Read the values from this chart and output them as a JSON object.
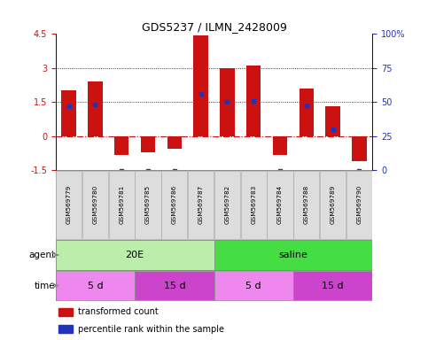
{
  "title": "GDS5237 / ILMN_2428009",
  "samples": [
    "GSM569779",
    "GSM569780",
    "GSM569781",
    "GSM569785",
    "GSM569786",
    "GSM569787",
    "GSM569782",
    "GSM569783",
    "GSM569784",
    "GSM569788",
    "GSM569789",
    "GSM569790"
  ],
  "bar_values": [
    2.0,
    2.4,
    -0.85,
    -0.7,
    -0.55,
    4.45,
    3.0,
    3.1,
    -0.85,
    2.1,
    1.3,
    -1.1
  ],
  "blue_values": [
    1.3,
    1.4,
    -1.55,
    -1.55,
    -1.55,
    1.85,
    1.5,
    1.55,
    -1.55,
    1.35,
    0.3,
    -1.55
  ],
  "ylim": [
    -1.5,
    4.5
  ],
  "right_ylim": [
    0,
    100
  ],
  "yticks_left": [
    -1.5,
    0,
    1.5,
    3,
    4.5
  ],
  "yticks_right": [
    0,
    25,
    50,
    75,
    100
  ],
  "bar_color": "#CC1111",
  "blue_color": "#2233BB",
  "agent_groups": [
    {
      "label": "20E",
      "start": 0,
      "end": 6,
      "color": "#BBEEAA"
    },
    {
      "label": "saline",
      "start": 6,
      "end": 12,
      "color": "#44DD44"
    }
  ],
  "time_groups": [
    {
      "label": "5 d",
      "start": 0,
      "end": 3,
      "color": "#EE88EE"
    },
    {
      "label": "15 d",
      "start": 3,
      "end": 6,
      "color": "#CC44CC"
    },
    {
      "label": "5 d",
      "start": 6,
      "end": 9,
      "color": "#EE88EE"
    },
    {
      "label": "15 d",
      "start": 9,
      "end": 12,
      "color": "#CC44CC"
    }
  ],
  "xlabel_agent": "agent",
  "xlabel_time": "time",
  "legend_items": [
    {
      "color": "#CC1111",
      "label": "transformed count"
    },
    {
      "color": "#2233BB",
      "label": "percentile rank within the sample"
    }
  ],
  "label_bg": "#DDDDDD",
  "label_border": "#AAAAAA"
}
